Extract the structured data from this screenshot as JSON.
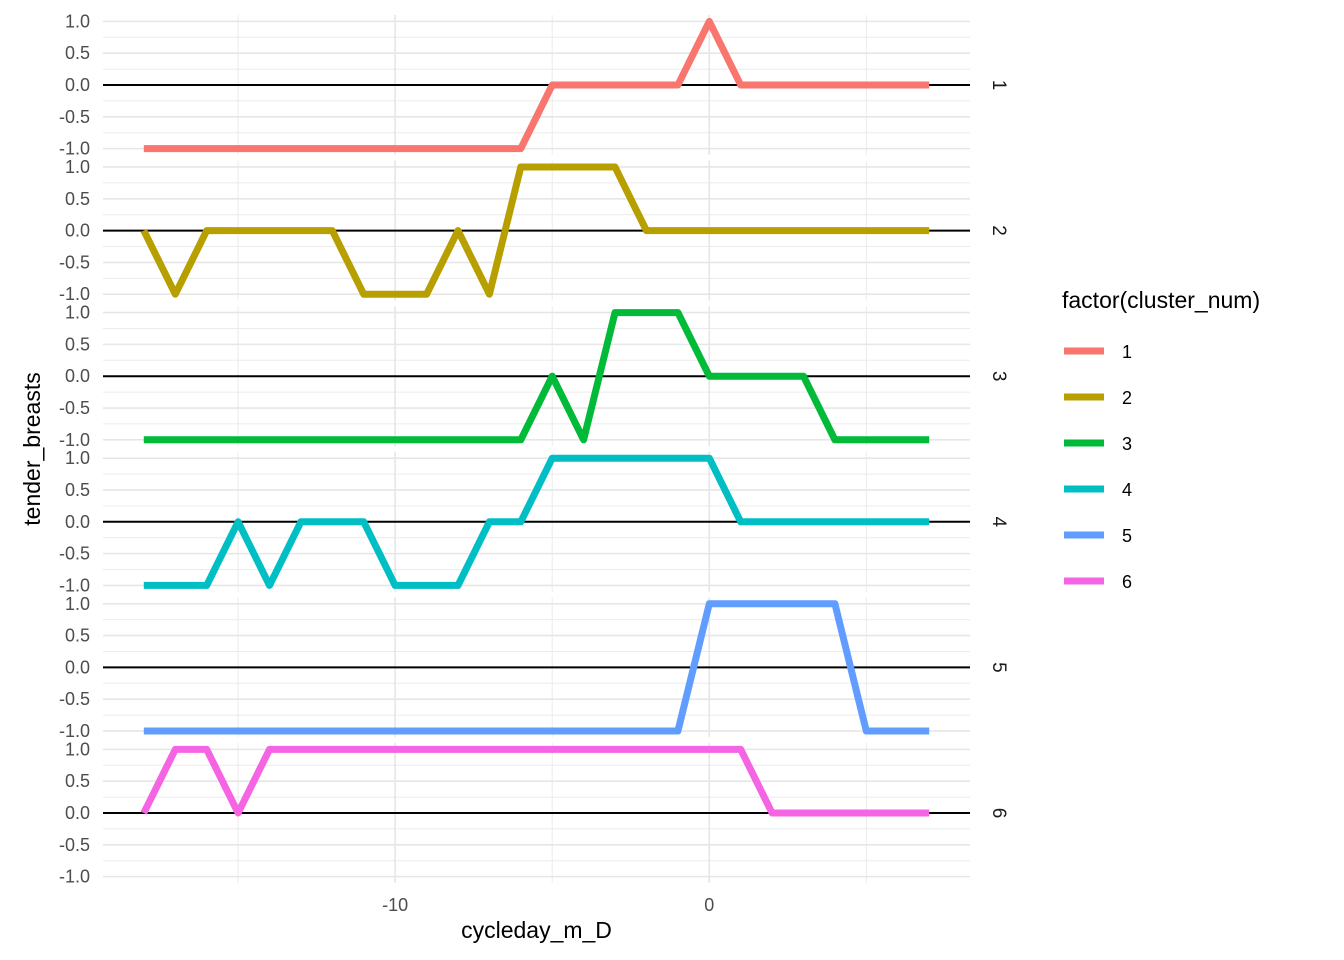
{
  "chart_data": {
    "type": "line",
    "xlabel": "cycleday_m_D",
    "ylabel": "tender_breasts",
    "x": [
      -18,
      -17,
      -16,
      -15,
      -14,
      -13,
      -12,
      -11,
      -10,
      -9,
      -8,
      -7,
      -6,
      -5,
      -4,
      -3,
      -2,
      -1,
      0,
      1,
      2,
      3,
      4,
      5,
      6,
      7
    ],
    "xlim": [
      -19.3,
      8.3
    ],
    "x_ticks": [
      -10,
      0
    ],
    "x_tick_labels": [
      "-10",
      "0"
    ],
    "ylim": [
      -1.1,
      1.1
    ],
    "y_ticks": [
      -1.0,
      -0.5,
      0.0,
      0.5,
      1.0
    ],
    "y_tick_labels": [
      "-1.0",
      "-0.5",
      "0.0",
      "0.5",
      "1.0"
    ],
    "grid": true,
    "zero_line": true,
    "facet_by": "cluster_num",
    "legend": {
      "title": "factor(cluster_num)",
      "position": "right"
    },
    "series": [
      {
        "name": "1",
        "color": "#F8766D",
        "values": [
          -1,
          -1,
          -1,
          -1,
          -1,
          -1,
          -1,
          -1,
          -1,
          -1,
          -1,
          -1,
          -1,
          0,
          0,
          0,
          0,
          0,
          1,
          0,
          0,
          0,
          0,
          0,
          0,
          0
        ]
      },
      {
        "name": "2",
        "color": "#B79F00",
        "values": [
          0,
          -1,
          0,
          0,
          0,
          0,
          0,
          -1,
          -1,
          -1,
          0,
          -1,
          1,
          1,
          1,
          1,
          0,
          0,
          0,
          0,
          0,
          0,
          0,
          0,
          0,
          0
        ]
      },
      {
        "name": "3",
        "color": "#00BA38",
        "values": [
          -1,
          -1,
          -1,
          -1,
          -1,
          -1,
          -1,
          -1,
          -1,
          -1,
          -1,
          -1,
          -1,
          0,
          -1,
          1,
          1,
          1,
          0,
          0,
          0,
          0,
          -1,
          -1,
          -1,
          -1
        ]
      },
      {
        "name": "4",
        "color": "#00BFC4",
        "values": [
          -1,
          -1,
          -1,
          0,
          -1,
          0,
          0,
          0,
          -1,
          -1,
          -1,
          0,
          0,
          1,
          1,
          1,
          1,
          1,
          1,
          0,
          0,
          0,
          0,
          0,
          0,
          0
        ]
      },
      {
        "name": "5",
        "color": "#619CFF",
        "values": [
          -1,
          -1,
          -1,
          -1,
          -1,
          -1,
          -1,
          -1,
          -1,
          -1,
          -1,
          -1,
          -1,
          -1,
          -1,
          -1,
          -1,
          -1,
          1,
          1,
          1,
          1,
          1,
          -1,
          -1,
          -1
        ]
      },
      {
        "name": "6",
        "color": "#F564E3",
        "values": [
          0,
          1,
          1,
          0,
          1,
          1,
          1,
          1,
          1,
          1,
          1,
          1,
          1,
          1,
          1,
          1,
          1,
          1,
          1,
          1,
          0,
          0,
          0,
          0,
          0,
          0
        ]
      }
    ]
  }
}
